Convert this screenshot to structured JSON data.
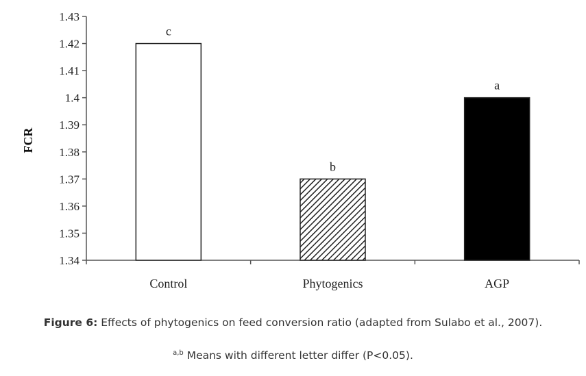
{
  "chart_data": {
    "type": "bar",
    "categories": [
      "Control",
      "Phytogenics",
      "AGP"
    ],
    "values": [
      1.42,
      1.37,
      1.4
    ],
    "significance_labels": [
      "c",
      "b",
      "a"
    ],
    "fills": [
      "white",
      "hatched",
      "black"
    ],
    "ylabel": "FCR",
    "xlabel": "",
    "ylim": [
      1.34,
      1.43
    ],
    "yticks": [
      1.34,
      1.35,
      1.36,
      1.37,
      1.38,
      1.39,
      1.4,
      1.41,
      1.42,
      1.43
    ],
    "ytick_labels": [
      "1.34",
      "1.35",
      "1.36",
      "1.37",
      "1.38",
      "1.39",
      "1.4",
      "1.41",
      "1.42",
      "1.43"
    ],
    "grid": false,
    "legend": "none"
  },
  "caption": {
    "figure_label": "Figure 6:",
    "text": "Effects of phytogenics on feed conversion ratio (adapted from Sulabo et al., 2007).",
    "note_superscript": "a,b",
    "note_text": "Means with different letter differ (P<0.05)."
  },
  "colors": {
    "axis": "#555555",
    "bar_outline": "#222222",
    "bar_black": "#000000",
    "text": "#222222"
  }
}
